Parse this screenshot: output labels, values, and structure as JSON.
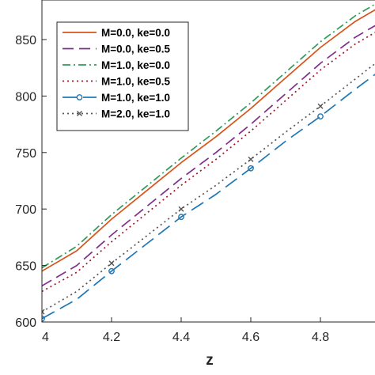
{
  "chart_data": {
    "type": "line",
    "xlabel": "z",
    "ylabel": "",
    "xlim": [
      4,
      5
    ],
    "ylim": [
      600,
      885
    ],
    "xticks": [
      4,
      4.2,
      4.4,
      4.6,
      4.8
    ],
    "xtick_labels": [
      "4",
      "4.2",
      "4.4",
      "4.6",
      "4.8"
    ],
    "yticks": [
      600,
      650,
      700,
      750,
      800,
      850
    ],
    "ytick_labels": [
      "600",
      "650",
      "700",
      "750",
      "800",
      "850"
    ],
    "grid": false,
    "legend_position": "top-left",
    "x": [
      4.0,
      4.1,
      4.2,
      4.3,
      4.4,
      4.5,
      4.6,
      4.7,
      4.8,
      4.9,
      5.0
    ],
    "series": [
      {
        "name": "M=0.0, ke=0.0",
        "color": "#D95319",
        "style": "solid",
        "marker": "none",
        "values": [
          645,
          663,
          691,
          716,
          741,
          764,
          789,
          816,
          843,
          866,
          884
        ]
      },
      {
        "name": "M=0.0, ke=0.5",
        "color": "#7E2F8E",
        "style": "dashed",
        "marker": "none",
        "values": [
          632,
          650,
          677,
          702,
          727,
          750,
          775,
          802,
          829,
          852,
          870
        ]
      },
      {
        "name": "M=1.0, ke=0.0",
        "color": "#2E9C5A",
        "style": "dashdot",
        "marker": "none",
        "values": [
          648,
          667,
          695,
          720,
          745,
          769,
          794,
          821,
          848,
          871,
          889
        ]
      },
      {
        "name": "M=1.0, ke=0.5",
        "color": "#A2142F",
        "style": "dotted",
        "marker": "none",
        "values": [
          627,
          644,
          671,
          696,
          721,
          744,
          769,
          796,
          823,
          846,
          864
        ]
      },
      {
        "name": "M=1.0, ke=1.0",
        "color": "#1F77B4",
        "style": "longdash",
        "marker": "circle",
        "values": [
          603,
          620,
          645,
          669,
          693,
          713,
          736,
          760,
          782,
          806,
          829
        ]
      },
      {
        "name": "M=2.0, ke=1.0",
        "color": "#555555",
        "style": "dotted",
        "marker": "x",
        "values": [
          609,
          627,
          652,
          676,
          700,
          721,
          744,
          768,
          791,
          815,
          839
        ]
      }
    ]
  }
}
